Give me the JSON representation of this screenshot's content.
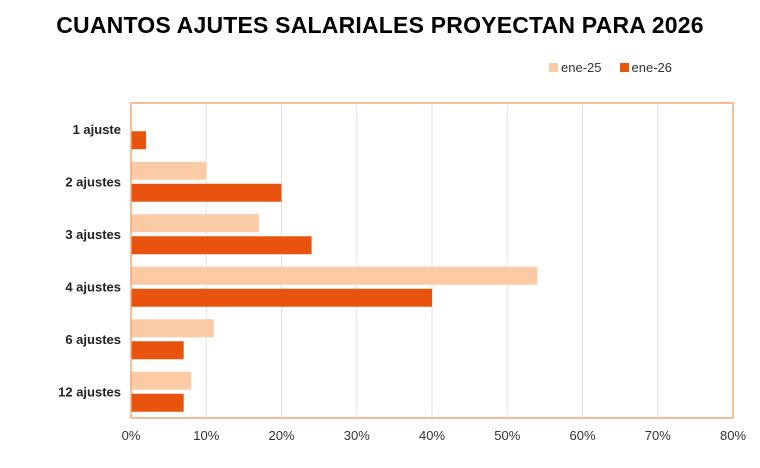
{
  "chart_data": {
    "type": "bar",
    "orientation": "horizontal",
    "title": "CUANTOS AJUTES SALARIALES PROYECTAN PARA 2026",
    "categories": [
      "1 ajuste",
      "2 ajustes",
      "3 ajustes",
      "4 ajustes",
      "6 ajustes",
      "12 ajustes"
    ],
    "series": [
      {
        "name": "ene-25",
        "color": "#FACBA5",
        "values": [
          null,
          10,
          17,
          54,
          11,
          8
        ]
      },
      {
        "name": "ene-26",
        "color": "#E8530E",
        "values": [
          2,
          20,
          24,
          40,
          7,
          7
        ]
      }
    ],
    "xlim": [
      0,
      80
    ],
    "x_ticks": [
      "0%",
      "10%",
      "20%",
      "30%",
      "40%",
      "50%",
      "60%",
      "70%",
      "80%"
    ],
    "grid": true,
    "legend_position": "top-right",
    "frame_color": "#F0A878",
    "grid_color": "#E2E2E2"
  }
}
